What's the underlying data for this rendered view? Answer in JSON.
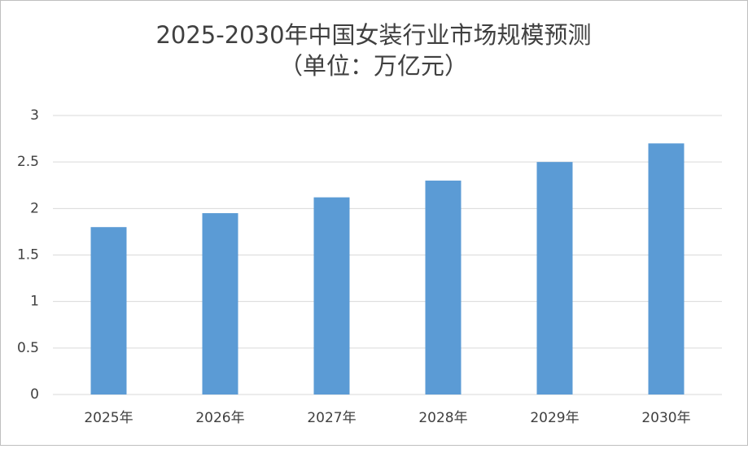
{
  "chart_data": {
    "type": "bar",
    "title": "2025-2030年中国女装行业市场规模预测",
    "subtitle": "（单位：万亿元）",
    "categories": [
      "2025年",
      "2026年",
      "2027年",
      "2028年",
      "2029年",
      "2030年"
    ],
    "values": [
      1.8,
      1.95,
      2.12,
      2.3,
      2.5,
      2.7
    ],
    "color": "#5b9bd5",
    "ylim": [
      0,
      3
    ],
    "yticks": [
      0,
      0.5,
      1,
      1.5,
      2,
      2.5,
      3
    ],
    "grid": true
  }
}
